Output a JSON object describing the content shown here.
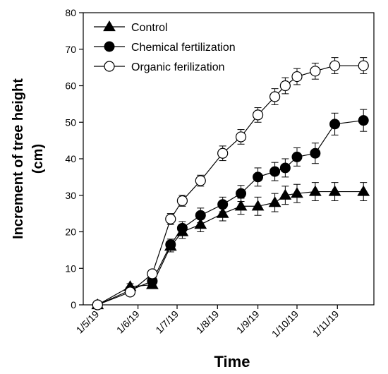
{
  "chart_data": {
    "type": "line",
    "xlabel": "Time",
    "ylabel_line1": "Increment of tree height",
    "ylabel_line2": "(cm)",
    "ylim": [
      0,
      80
    ],
    "yticks": [
      0,
      10,
      20,
      30,
      40,
      50,
      60,
      70,
      80
    ],
    "xlim": [
      "2019-04-20",
      "2019-11-29"
    ],
    "xticks": [
      {
        "date": "2019-05-01",
        "label": "1/5/19"
      },
      {
        "date": "2019-06-01",
        "label": "1/6/19"
      },
      {
        "date": "2019-07-01",
        "label": "1/7/19"
      },
      {
        "date": "2019-08-01",
        "label": "1/8/19"
      },
      {
        "date": "2019-09-01",
        "label": "1/9/19"
      },
      {
        "date": "2019-10-01",
        "label": "1/10/19"
      },
      {
        "date": "2019-11-01",
        "label": "1/11/19"
      }
    ],
    "legend_position": "top-left",
    "grid": false,
    "x": [
      "2019-05-01",
      "2019-05-26",
      "2019-06-12",
      "2019-06-26",
      "2019-07-05",
      "2019-07-19",
      "2019-08-05",
      "2019-08-19",
      "2019-09-01",
      "2019-09-14",
      "2019-09-22",
      "2019-10-01",
      "2019-10-15",
      "2019-10-30",
      "2019-11-21"
    ],
    "series": [
      {
        "name": "Control",
        "marker": "triangle",
        "values": [
          0,
          5,
          5.5,
          16,
          20,
          22,
          25,
          27,
          27,
          28,
          30,
          30.5,
          31,
          31,
          31
        ],
        "errors": [
          0.5,
          0.8,
          1,
          1.5,
          1.8,
          2,
          2,
          2.2,
          2.5,
          2.5,
          2.5,
          2.5,
          2.5,
          2.5,
          2.5
        ]
      },
      {
        "name": "Chemical fertilization",
        "marker": "filled-circle",
        "values": [
          0,
          4,
          6.5,
          16.5,
          21,
          24.5,
          27.5,
          30.5,
          35,
          36.5,
          37.5,
          40.5,
          41.5,
          49.5,
          50.5
        ],
        "errors": [
          0.5,
          0.8,
          1,
          1.5,
          1.8,
          2,
          2,
          2.2,
          2.5,
          2.5,
          2.5,
          2.5,
          2.8,
          3,
          3
        ]
      },
      {
        "name": "Organic ferilization",
        "marker": "open-circle",
        "values": [
          0,
          3.5,
          8.5,
          23.5,
          28.5,
          34,
          41.5,
          46,
          52,
          57,
          60,
          62.5,
          64,
          65.5,
          65.5
        ],
        "errors": [
          0.5,
          0.8,
          1,
          1.5,
          1.5,
          1.5,
          2,
          2,
          2,
          2.2,
          2.2,
          2.2,
          2.2,
          2.2,
          2.2
        ]
      }
    ],
    "colors": {
      "line": "#000000",
      "filled": "#000000",
      "open_fill": "#ffffff"
    }
  }
}
